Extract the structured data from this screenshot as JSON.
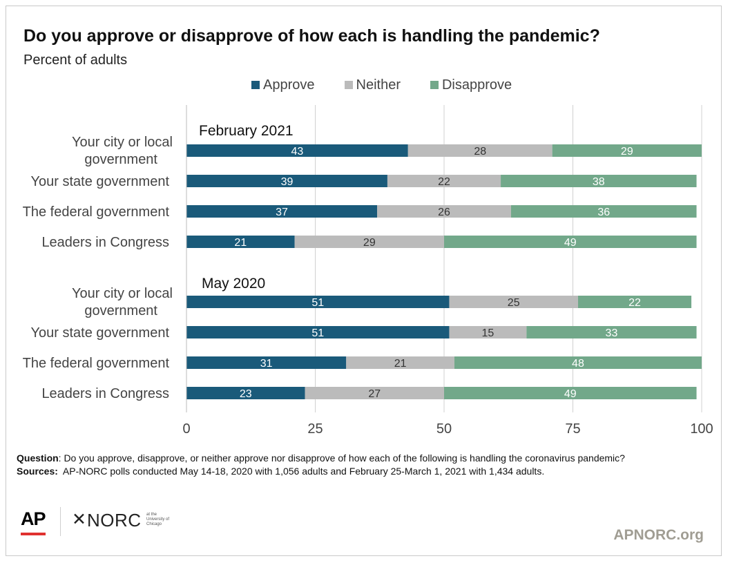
{
  "title": "Do you approve or disapprove of how each is handling the pandemic?",
  "subtitle": "Percent of adults",
  "colors": {
    "approve": "#1a5a7a",
    "neither": "#bbbbbb",
    "disapprove": "#72a88a",
    "grid": "#d0d0d0"
  },
  "chart_data": {
    "type": "bar",
    "orientation": "horizontal",
    "stacked": true,
    "legend": [
      "Approve",
      "Neither",
      "Disapprove"
    ],
    "legend_position": "top",
    "xlim": [
      0,
      100
    ],
    "xticks": [
      0,
      25,
      50,
      75,
      100
    ],
    "grid": true,
    "groups": [
      {
        "label": "February 2021",
        "categories": [
          "Your city or local government",
          "Your state government",
          "The federal government",
          "Leaders in Congress"
        ],
        "series": [
          {
            "name": "Approve",
            "values": [
              43,
              39,
              37,
              21
            ]
          },
          {
            "name": "Neither",
            "values": [
              28,
              22,
              26,
              29
            ]
          },
          {
            "name": "Disapprove",
            "values": [
              29,
              38,
              36,
              49
            ]
          }
        ]
      },
      {
        "label": "May 2020",
        "categories": [
          "Your city or local government",
          "Your state government",
          "The federal government",
          "Leaders in Congress"
        ],
        "series": [
          {
            "name": "Approve",
            "values": [
              51,
              51,
              31,
              23
            ]
          },
          {
            "name": "Neither",
            "values": [
              25,
              15,
              21,
              27
            ]
          },
          {
            "name": "Disapprove",
            "values": [
              22,
              33,
              48,
              49
            ]
          }
        ]
      }
    ]
  },
  "notes": {
    "question_label": "Question",
    "question_text": ": Do you approve, disapprove, or neither approve nor disapprove of how each of the following is handling the coronavirus pandemic?",
    "sources_label": "Sources:",
    "sources_text": "  AP-NORC polls conducted May 14-18, 2020 with 1,056 adults and February 25-March 1, 2021 with 1,434 adults."
  },
  "logos": {
    "ap": "AP",
    "norc_star": "✕",
    "norc": "NORC",
    "norc_sub": "at the University of Chicago"
  },
  "site": "APNORC.org"
}
